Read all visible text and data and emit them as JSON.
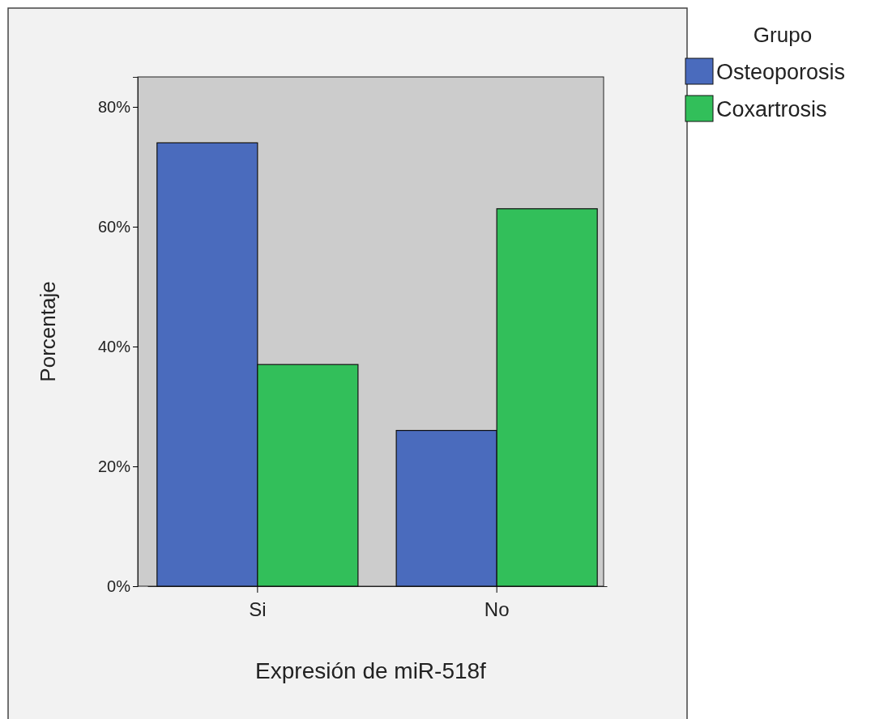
{
  "chart_data": {
    "type": "bar",
    "xlabel": "Expresión de miR-518f",
    "ylabel": "Porcentaje",
    "legend_title": "Grupo",
    "legend": "top right",
    "categories": [
      "Si",
      "No"
    ],
    "series": [
      {
        "name": "Osteoporosis",
        "color": "#4a6bbd",
        "values": [
          74,
          26
        ]
      },
      {
        "name": "Coxartrosis",
        "color": "#32bf5a",
        "values": [
          37,
          63
        ]
      }
    ],
    "ylim": [
      0,
      85
    ],
    "yticks": [
      {
        "value": 0,
        "label": "0%"
      },
      {
        "value": 20,
        "label": "20%"
      },
      {
        "value": 40,
        "label": "40%"
      },
      {
        "value": 60,
        "label": "60%"
      },
      {
        "value": 80,
        "label": "80%"
      }
    ],
    "grid": false
  }
}
